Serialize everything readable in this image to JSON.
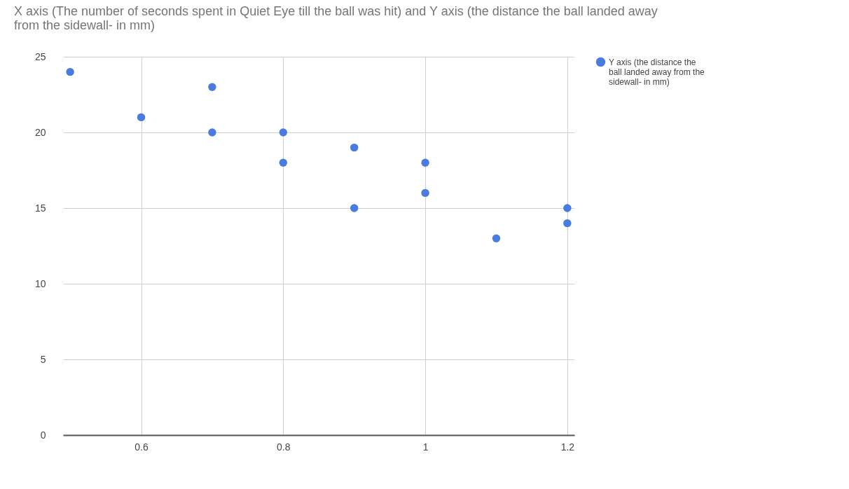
{
  "chart_data": {
    "type": "scatter",
    "title": "X axis (The number of seconds spent in Quiet Eye till the ball was hit) and  Y axis (the distance the ball landed away from the sidewall- in mm)",
    "x": [
      0.5,
      0.6,
      0.7,
      0.7,
      0.8,
      0.8,
      0.9,
      0.9,
      1,
      1,
      1.1,
      1.2,
      1.2
    ],
    "series": [
      {
        "name": "Y axis (the distance the ball landed away from the sidewall- in mm)",
        "color": "#4a7be0",
        "values": [
          24,
          21,
          23,
          20,
          20,
          18,
          19,
          15,
          18,
          16,
          13,
          15,
          14
        ]
      }
    ],
    "xlim": [
      0.49,
      1.21
    ],
    "xticks": [
      0.6,
      0.8,
      1,
      1.2
    ],
    "ylim": [
      0,
      25
    ],
    "yticks": [
      0,
      5,
      10,
      15,
      20,
      25
    ],
    "grid": true,
    "legend": "top right",
    "marker": "circle"
  }
}
